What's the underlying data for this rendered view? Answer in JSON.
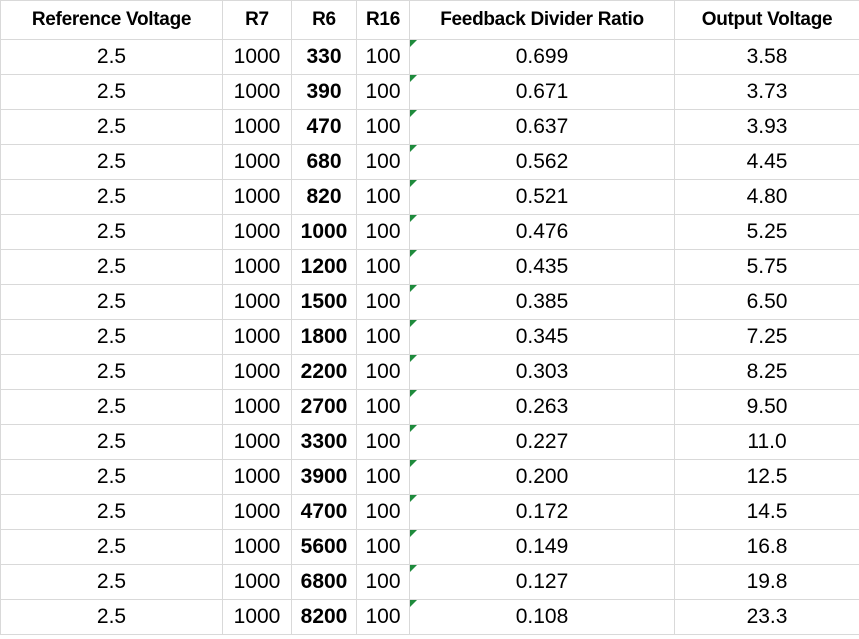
{
  "table": {
    "header": [
      "Reference Voltage",
      "R7",
      "R6",
      "R16",
      "Feedback Divider Ratio",
      "Output Voltage"
    ],
    "rows": [
      [
        "2.5",
        "1000",
        "330",
        "100",
        "0.699",
        "3.58"
      ],
      [
        "2.5",
        "1000",
        "390",
        "100",
        "0.671",
        "3.73"
      ],
      [
        "2.5",
        "1000",
        "470",
        "100",
        "0.637",
        "3.93"
      ],
      [
        "2.5",
        "1000",
        "680",
        "100",
        "0.562",
        "4.45"
      ],
      [
        "2.5",
        "1000",
        "820",
        "100",
        "0.521",
        "4.80"
      ],
      [
        "2.5",
        "1000",
        "1000",
        "100",
        "0.476",
        "5.25"
      ],
      [
        "2.5",
        "1000",
        "1200",
        "100",
        "0.435",
        "5.75"
      ],
      [
        "2.5",
        "1000",
        "1500",
        "100",
        "0.385",
        "6.50"
      ],
      [
        "2.5",
        "1000",
        "1800",
        "100",
        "0.345",
        "7.25"
      ],
      [
        "2.5",
        "1000",
        "2200",
        "100",
        "0.303",
        "8.25"
      ],
      [
        "2.5",
        "1000",
        "2700",
        "100",
        "0.263",
        "9.50"
      ],
      [
        "2.5",
        "1000",
        "3300",
        "100",
        "0.227",
        "11.0"
      ],
      [
        "2.5",
        "1000",
        "3900",
        "100",
        "0.200",
        "12.5"
      ],
      [
        "2.5",
        "1000",
        "4700",
        "100",
        "0.172",
        "14.5"
      ],
      [
        "2.5",
        "1000",
        "5600",
        "100",
        "0.149",
        "16.8"
      ],
      [
        "2.5",
        "1000",
        "6800",
        "100",
        "0.127",
        "19.8"
      ],
      [
        "2.5",
        "1000",
        "8200",
        "100",
        "0.108",
        "23.3"
      ]
    ]
  }
}
